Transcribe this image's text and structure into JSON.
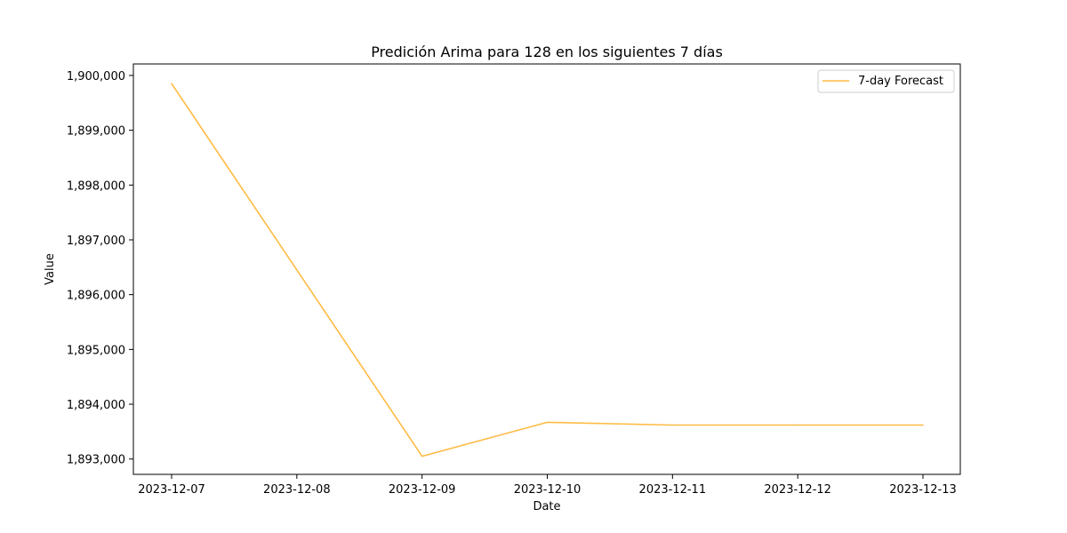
{
  "chart_data": {
    "type": "line",
    "title": "Predición Arima para 128 en los siguientes 7 días",
    "xlabel": "Date",
    "ylabel": "Value",
    "x": [
      "2023-12-07",
      "2023-12-08",
      "2023-12-09",
      "2023-12-10",
      "2023-12-11",
      "2023-12-12",
      "2023-12-13"
    ],
    "series": [
      {
        "name": "7-day Forecast",
        "color": "#ffbb44",
        "values": [
          1899850,
          null,
          1893050,
          1893670,
          1893620,
          1893620,
          1893620
        ]
      }
    ],
    "x_ticks": [
      "2023-12-07",
      "2023-12-08",
      "2023-12-09",
      "2023-12-10",
      "2023-12-11",
      "2023-12-12",
      "2023-12-13"
    ],
    "y_ticks": [
      1893000,
      1894000,
      1895000,
      1896000,
      1897000,
      1898000,
      1899000,
      1900000
    ],
    "y_tick_labels": [
      "1,893,000",
      "1,894,000",
      "1,895,000",
      "1,896,000",
      "1,897,000",
      "1,898,000",
      "1,899,000",
      "1,900,000"
    ],
    "ylim": [
      1892720,
      1900210
    ],
    "grid": false,
    "legend": "top-right"
  }
}
